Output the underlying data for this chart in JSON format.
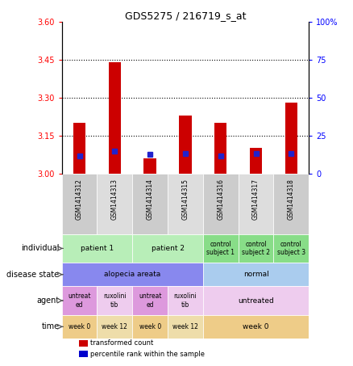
{
  "title": "GDS5275 / 216719_s_at",
  "samples": [
    "GSM1414312",
    "GSM1414313",
    "GSM1414314",
    "GSM1414315",
    "GSM1414316",
    "GSM1414317",
    "GSM1414318"
  ],
  "red_values": [
    3.2,
    3.44,
    3.06,
    3.23,
    3.2,
    3.1,
    3.28
  ],
  "blue_values": [
    3.07,
    3.09,
    3.075,
    3.08,
    3.07,
    3.08,
    3.08
  ],
  "ylim_left": [
    3.0,
    3.6
  ],
  "ylim_right": [
    0,
    100
  ],
  "yticks_left": [
    3.0,
    3.15,
    3.3,
    3.45,
    3.6
  ],
  "yticks_right": [
    0,
    25,
    50,
    75,
    100
  ],
  "hline_values": [
    3.15,
    3.3,
    3.45
  ],
  "bar_width": 0.35,
  "annotation_rows": {
    "individual": {
      "groups": [
        {
          "label": "patient 1",
          "span": [
            0,
            2
          ],
          "color": "#b8eeb8"
        },
        {
          "label": "patient 2",
          "span": [
            2,
            4
          ],
          "color": "#b8eeb8"
        },
        {
          "label": "control\nsubject 1",
          "span": [
            4,
            5
          ],
          "color": "#88dd88"
        },
        {
          "label": "control\nsubject 2",
          "span": [
            5,
            6
          ],
          "color": "#88dd88"
        },
        {
          "label": "control\nsubject 3",
          "span": [
            6,
            7
          ],
          "color": "#88dd88"
        }
      ]
    },
    "disease_state": {
      "groups": [
        {
          "label": "alopecia areata",
          "span": [
            0,
            4
          ],
          "color": "#8888ee"
        },
        {
          "label": "normal",
          "span": [
            4,
            7
          ],
          "color": "#aaccee"
        }
      ]
    },
    "agent": {
      "groups": [
        {
          "label": "untreat\ned",
          "span": [
            0,
            1
          ],
          "color": "#dd99dd"
        },
        {
          "label": "ruxolini\ntib",
          "span": [
            1,
            2
          ],
          "color": "#eeccee"
        },
        {
          "label": "untreat\ned",
          "span": [
            2,
            3
          ],
          "color": "#dd99dd"
        },
        {
          "label": "ruxolini\ntib",
          "span": [
            3,
            4
          ],
          "color": "#eeccee"
        },
        {
          "label": "untreated",
          "span": [
            4,
            7
          ],
          "color": "#eeccee"
        }
      ]
    },
    "time": {
      "groups": [
        {
          "label": "week 0",
          "span": [
            0,
            1
          ],
          "color": "#eecc88"
        },
        {
          "label": "week 12",
          "span": [
            1,
            2
          ],
          "color": "#eeddaa"
        },
        {
          "label": "week 0",
          "span": [
            2,
            3
          ],
          "color": "#eecc88"
        },
        {
          "label": "week 12",
          "span": [
            3,
            4
          ],
          "color": "#eeddaa"
        },
        {
          "label": "week 0",
          "span": [
            4,
            7
          ],
          "color": "#eecc88"
        }
      ]
    }
  },
  "sample_row_color": "#cccccc",
  "sample_row_alt_color": "#dddddd",
  "row_labels": [
    "individual",
    "disease state",
    "agent",
    "time"
  ],
  "row_keys": [
    "individual",
    "disease_state",
    "agent",
    "time"
  ],
  "legend": [
    {
      "color": "#cc0000",
      "label": "transformed count"
    },
    {
      "color": "#0000cc",
      "label": "percentile rank within the sample"
    }
  ]
}
